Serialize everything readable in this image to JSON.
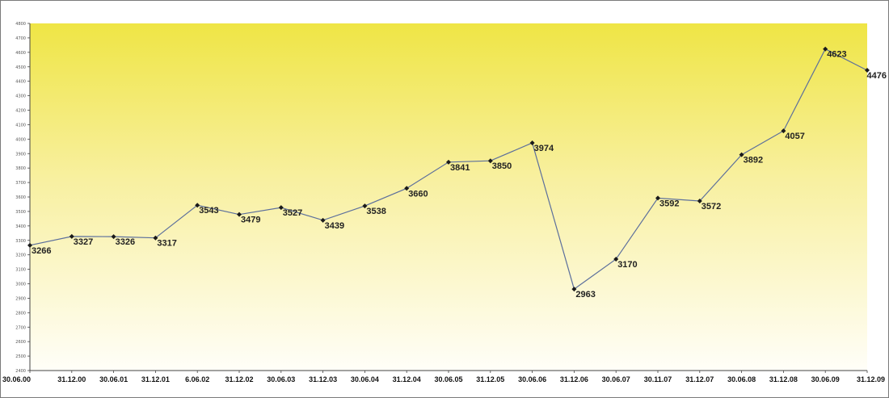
{
  "chart_data": {
    "type": "line",
    "title": "",
    "xlabel": "",
    "ylabel": "",
    "categories": [
      "30.06.00",
      "31.12.00",
      "30.06.01",
      "31.12.01",
      "6.06.02",
      "31.12.02",
      "30.06.03",
      "31.12.03",
      "30.06.04",
      "31.12.04",
      "30.06.05",
      "31.12.05",
      "30.06.06",
      "31.12.06",
      "30.06.07",
      "30.11.07",
      "31.12.07",
      "30.06.08",
      "31.12.08",
      "30.06.09",
      "31.12.09"
    ],
    "series": [
      {
        "values": [
          3266,
          3327,
          3326,
          3317,
          3543,
          3479,
          3527,
          3439,
          3538,
          3660,
          3841,
          3850,
          3974,
          2963,
          3170,
          3592,
          3572,
          3892,
          4057,
          4623,
          4476
        ]
      }
    ],
    "data_labels": [
      "3266",
      "3327",
      "3326",
      "3317",
      "3543",
      "3479",
      "3527",
      "3439",
      "3538",
      "3660",
      "3841",
      "3850",
      "3974",
      "2963",
      "3170",
      "3592",
      "3572",
      "3892",
      "4057",
      "4623",
      "4476"
    ],
    "ylim": [
      2400,
      4800
    ],
    "yticks": [
      2400,
      2500,
      2600,
      2700,
      2800,
      2900,
      3000,
      3100,
      3200,
      3300,
      3400,
      3500,
      3600,
      3700,
      3800,
      3900,
      4000,
      4100,
      4200,
      4300,
      4400,
      4500,
      4600,
      4700,
      4800
    ],
    "grid": false,
    "legend": "none",
    "colors": {
      "line": "#5c6f9c",
      "marker": "#1a1a1a",
      "background_top": "#efe545",
      "background_bottom": "#fffef8",
      "axis": "#444444"
    }
  }
}
